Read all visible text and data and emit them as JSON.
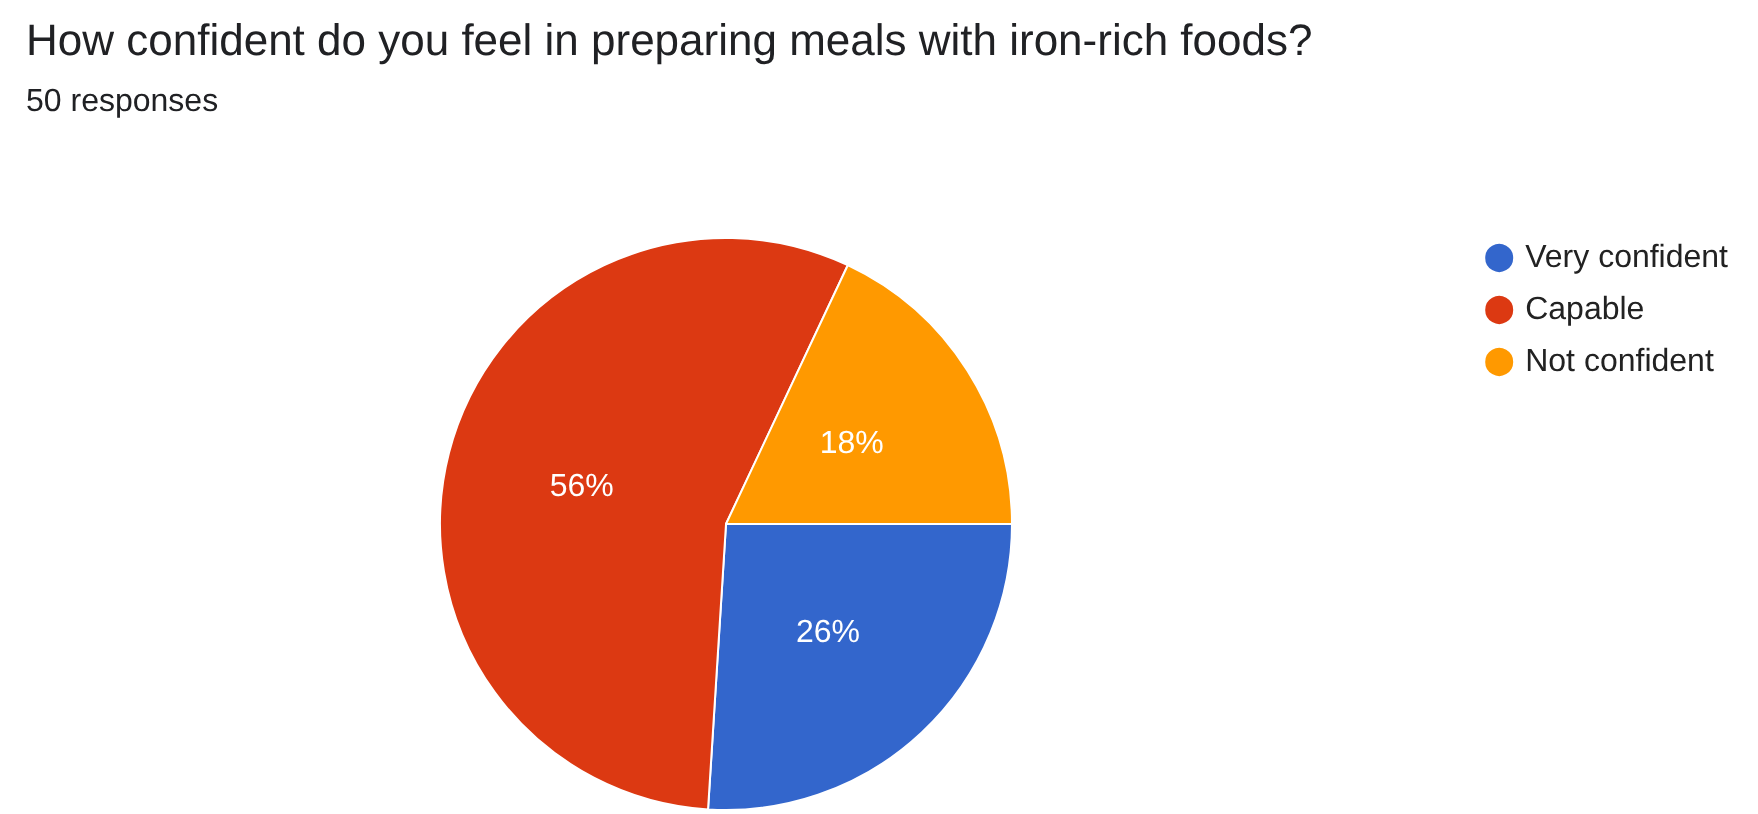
{
  "chart_data": {
    "type": "pie",
    "title": "How confident do you feel in preparing meals with iron-rich foods?",
    "subtitle": "50 responses",
    "categories": [
      "Very confident",
      "Capable",
      "Not confident"
    ],
    "values": [
      26,
      56,
      18
    ],
    "colors": [
      "#3366cc",
      "#dc3912",
      "#ff9900"
    ],
    "value_labels": [
      "26%",
      "56%",
      "18%"
    ],
    "legend": "top right"
  }
}
